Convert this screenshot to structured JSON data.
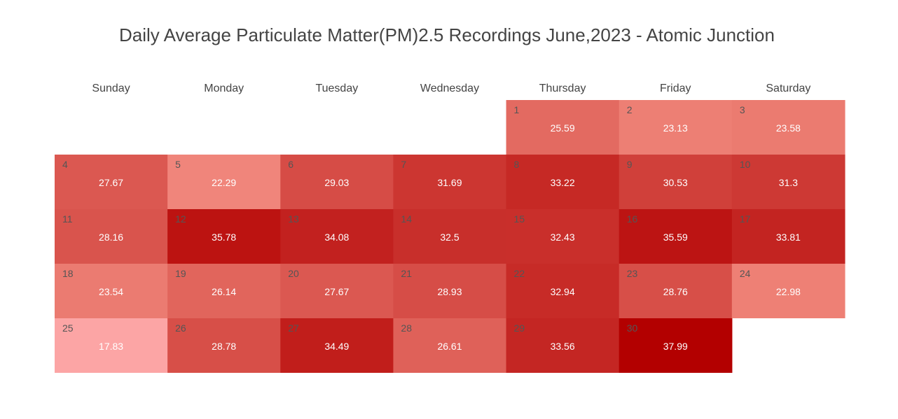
{
  "chart_data": {
    "type": "heatmap",
    "title": "Daily Average Particulate Matter(PM)2.5 Recordings June,2023 - Atomic Junction",
    "weekdays": [
      "Sunday",
      "Monday",
      "Tuesday",
      "Wednesday",
      "Thursday",
      "Friday",
      "Saturday"
    ],
    "first_weekday_index": 4,
    "days": [
      1,
      2,
      3,
      4,
      5,
      6,
      7,
      8,
      9,
      10,
      11,
      12,
      13,
      14,
      15,
      16,
      17,
      18,
      19,
      20,
      21,
      22,
      23,
      24,
      25,
      26,
      27,
      28,
      29,
      30
    ],
    "values": [
      25.59,
      23.13,
      23.58,
      27.67,
      22.29,
      29.03,
      31.69,
      33.22,
      30.53,
      31.3,
      28.16,
      35.78,
      34.08,
      32.5,
      32.43,
      35.59,
      33.81,
      23.54,
      26.14,
      27.67,
      28.93,
      32.94,
      28.76,
      22.98,
      17.83,
      28.78,
      34.49,
      26.61,
      33.56,
      37.99
    ],
    "color_scale": {
      "min_value": 17.83,
      "max_value": 37.99,
      "low_color": "#fca5a5",
      "mid_color": "#ee8176",
      "high_color": "#b30000"
    }
  }
}
